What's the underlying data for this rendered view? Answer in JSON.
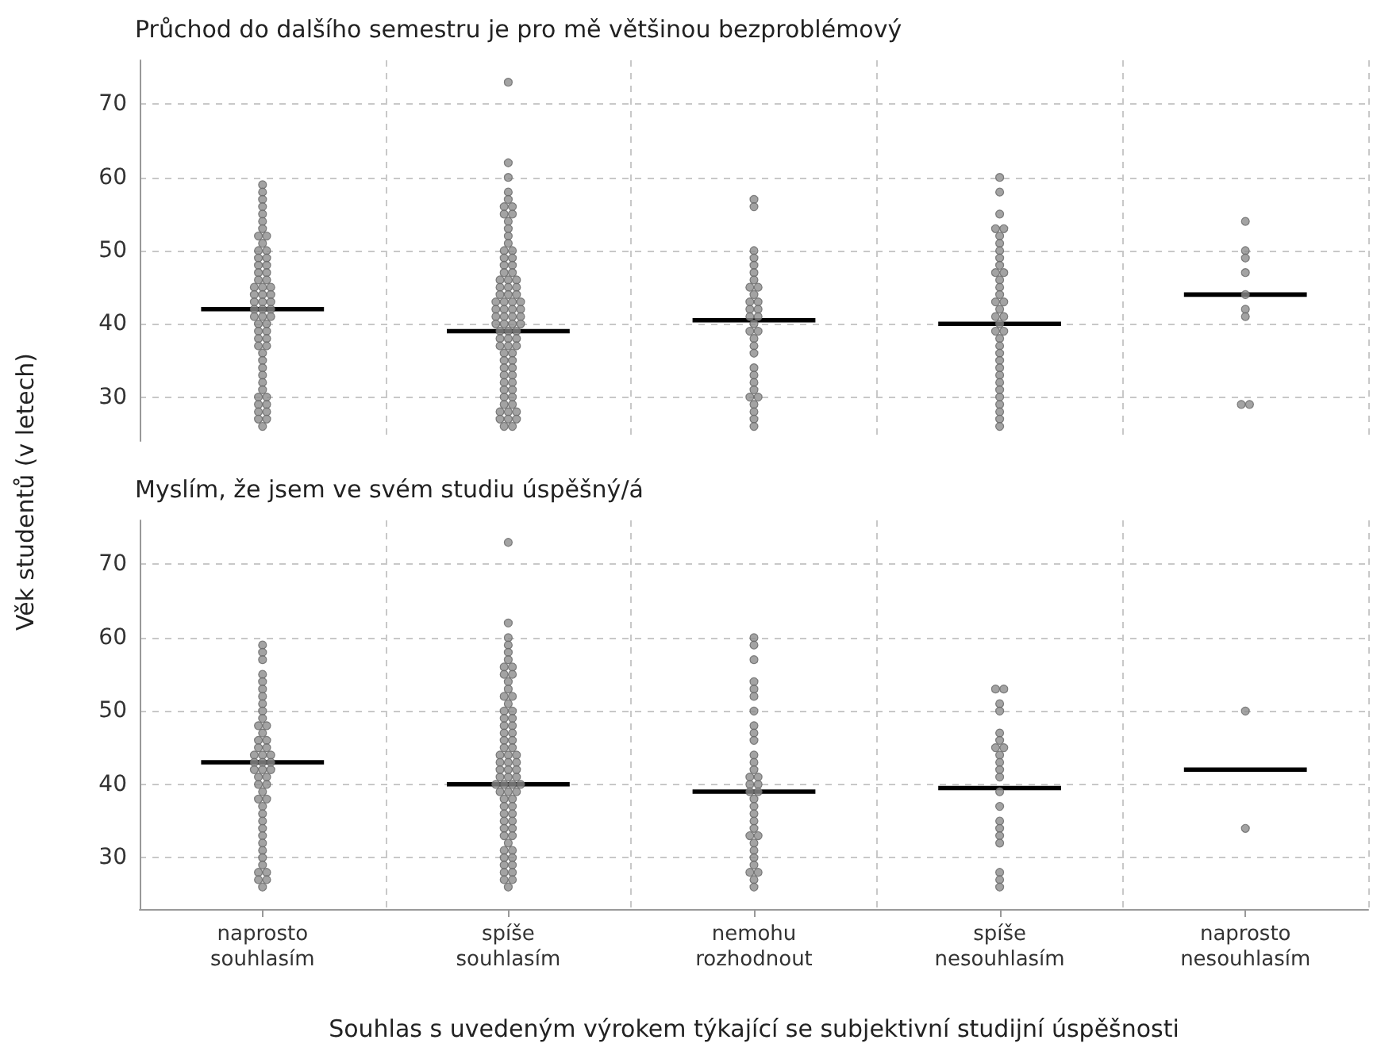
{
  "chart_data": [
    {
      "type": "scatter",
      "title": "Průchod do dalšího semestru je pro mě většinou bezproblémový",
      "ylabel": "Věk studentů (v letech)",
      "categories": [
        "naprosto souhlasím",
        "spíše souhlasím",
        "nemohu rozhodnout",
        "spíše nesouhlasím",
        "naprosto nesouhlasím"
      ],
      "ylim": [
        24,
        76
      ],
      "yticks": [
        30,
        40,
        50,
        60,
        70
      ],
      "grid": true,
      "tick_labels": "y",
      "marker": "circle",
      "series": [
        {
          "type": "scatter",
          "color": "#8c8c8c",
          "x": [
            "naprosto souhlasím",
            "naprosto souhlasím",
            "naprosto souhlasím",
            "naprosto souhlasím",
            "naprosto souhlasím",
            "naprosto souhlasím",
            "naprosto souhlasím",
            "naprosto souhlasím",
            "naprosto souhlasím",
            "naprosto souhlasím",
            "naprosto souhlasím",
            "naprosto souhlasím",
            "naprosto souhlasím",
            "naprosto souhlasím",
            "naprosto souhlasím",
            "naprosto souhlasím",
            "naprosto souhlasím",
            "naprosto souhlasím",
            "naprosto souhlasím",
            "naprosto souhlasím",
            "naprosto souhlasím",
            "naprosto souhlasím",
            "naprosto souhlasím",
            "naprosto souhlasím",
            "naprosto souhlasím",
            "naprosto souhlasím",
            "naprosto souhlasím",
            "naprosto souhlasím",
            "naprosto souhlasím",
            "naprosto souhlasím",
            "naprosto souhlasím",
            "naprosto souhlasím",
            "naprosto souhlasím",
            "naprosto souhlasím",
            "naprosto souhlasím",
            "naprosto souhlasím",
            "naprosto souhlasím",
            "naprosto souhlasím",
            "naprosto souhlasím",
            "naprosto souhlasím",
            "naprosto souhlasím",
            "naprosto souhlasím",
            "naprosto souhlasím",
            "naprosto souhlasím",
            "naprosto souhlasím",
            "naprosto souhlasím",
            "naprosto souhlasím",
            "naprosto souhlasím",
            "naprosto souhlasím",
            "naprosto souhlasím",
            "naprosto souhlasím",
            "naprosto souhlasím",
            "naprosto souhlasím",
            "naprosto souhlasím",
            "naprosto souhlasím",
            "naprosto souhlasím",
            "naprosto souhlasím",
            "naprosto souhlasím"
          ],
          "values": [
            59,
            58,
            57,
            56,
            55,
            54,
            53,
            52,
            52,
            51,
            50,
            50,
            49,
            49,
            48,
            48,
            47,
            47,
            46,
            46,
            45,
            45,
            45,
            44,
            44,
            44,
            43,
            43,
            43,
            42,
            42,
            42,
            41,
            41,
            41,
            40,
            40,
            39,
            39,
            38,
            38,
            37,
            37,
            36,
            35,
            34,
            33,
            32,
            31,
            30,
            30,
            29,
            29,
            28,
            28,
            27,
            27,
            26
          ]
        },
        {
          "type": "scatter",
          "color": "#8c8c8c",
          "x": [
            "spíše souhlasím",
            "spíše souhlasím",
            "spíše souhlasím",
            "spíše souhlasím",
            "spíše souhlasím",
            "spíše souhlasím",
            "spíše souhlasím",
            "spíše souhlasím",
            "spíše souhlasím",
            "spíše souhlasím",
            "spíše souhlasím",
            "spíše souhlasím",
            "spíše souhlasím",
            "spíše souhlasím",
            "spíše souhlasím",
            "spíše souhlasím",
            "spíše souhlasím",
            "spíše souhlasím",
            "spíše souhlasím",
            "spíše souhlasím",
            "spíše souhlasím",
            "spíše souhlasím",
            "spíše souhlasím",
            "spíše souhlasím",
            "spíše souhlasím",
            "spíše souhlasím",
            "spíše souhlasím",
            "spíše souhlasím",
            "spíše souhlasím",
            "spíše souhlasím",
            "spíše souhlasím",
            "spíše souhlasím",
            "spíše souhlasím",
            "spíše souhlasím",
            "spíše souhlasím",
            "spíše souhlasím",
            "spíše souhlasím",
            "spíše souhlasím",
            "spíše souhlasím",
            "spíše souhlasím",
            "spíše souhlasím",
            "spíše souhlasím",
            "spíše souhlasím",
            "spíše souhlasím",
            "spíše souhlasím",
            "spíše souhlasím",
            "spíše souhlasím",
            "spíše souhlasím",
            "spíše souhlasím",
            "spíše souhlasím",
            "spíše souhlasím",
            "spíše souhlasím",
            "spíše souhlasím",
            "spíše souhlasím",
            "spíše souhlasím",
            "spíše souhlasím",
            "spíše souhlasím",
            "spíše souhlasím",
            "spíše souhlasím",
            "spíše souhlasím",
            "spíše souhlasím",
            "spíše souhlasím",
            "spíše souhlasím",
            "spíše souhlasím",
            "spíše souhlasím",
            "spíše souhlasím",
            "spíše souhlasím",
            "spíše souhlasím",
            "spíše souhlasím",
            "spíše souhlasím",
            "spíše souhlasím",
            "spíše souhlasím",
            "spíše souhlasím",
            "spíše souhlasím",
            "spíše souhlasím",
            "spíše souhlasím",
            "spíše souhlasím",
            "spíše souhlasím",
            "spíše souhlasím"
          ],
          "values": [
            73,
            62,
            60,
            58,
            57,
            56,
            56,
            55,
            55,
            54,
            53,
            52,
            51,
            50,
            50,
            49,
            49,
            48,
            48,
            47,
            47,
            46,
            46,
            46,
            45,
            45,
            45,
            44,
            44,
            44,
            43,
            43,
            43,
            43,
            42,
            42,
            42,
            42,
            41,
            41,
            41,
            41,
            40,
            40,
            40,
            40,
            39,
            39,
            39,
            38,
            38,
            38,
            37,
            37,
            37,
            36,
            36,
            35,
            35,
            34,
            34,
            33,
            33,
            32,
            32,
            31,
            31,
            30,
            30,
            29,
            29,
            28,
            28,
            28,
            27,
            27,
            27,
            26,
            26
          ]
        },
        {
          "type": "scatter",
          "color": "#8c8c8c",
          "x": [
            "nemohu rozhodnout",
            "nemohu rozhodnout",
            "nemohu rozhodnout",
            "nemohu rozhodnout",
            "nemohu rozhodnout",
            "nemohu rozhodnout",
            "nemohu rozhodnout",
            "nemohu rozhodnout",
            "nemohu rozhodnout",
            "nemohu rozhodnout",
            "nemohu rozhodnout",
            "nemohu rozhodnout",
            "nemohu rozhodnout",
            "nemohu rozhodnout",
            "nemohu rozhodnout",
            "nemohu rozhodnout",
            "nemohu rozhodnout",
            "nemohu rozhodnout",
            "nemohu rozhodnout",
            "nemohu rozhodnout",
            "nemohu rozhodnout",
            "nemohu rozhodnout",
            "nemohu rozhodnout",
            "nemohu rozhodnout",
            "nemohu rozhodnout",
            "nemohu rozhodnout",
            "nemohu rozhodnout",
            "nemohu rozhodnout",
            "nemohu rozhodnout",
            "nemohu rozhodnout",
            "nemohu rozhodnout",
            "nemohu rozhodnout"
          ],
          "values": [
            57,
            56,
            50,
            49,
            48,
            47,
            46,
            45,
            45,
            44,
            43,
            43,
            42,
            42,
            41,
            41,
            40,
            39,
            39,
            38,
            37,
            36,
            34,
            33,
            32,
            31,
            30,
            30,
            29,
            28,
            27,
            26
          ]
        },
        {
          "type": "scatter",
          "color": "#8c8c8c",
          "x": [
            "spíše nesouhlasím",
            "spíše nesouhlasím",
            "spíše nesouhlasím",
            "spíše nesouhlasím",
            "spíše nesouhlasím",
            "spíše nesouhlasím",
            "spíše nesouhlasím",
            "spíše nesouhlasím",
            "spíše nesouhlasím",
            "spíše nesouhlasím",
            "spíše nesouhlasím",
            "spíše nesouhlasím",
            "spíše nesouhlasím",
            "spíše nesouhlasím",
            "spíše nesouhlasím",
            "spíše nesouhlasím",
            "spíše nesouhlasím",
            "spíše nesouhlasím",
            "spíše nesouhlasím",
            "spíše nesouhlasím",
            "spíše nesouhlasím",
            "spíše nesouhlasím",
            "spíše nesouhlasím",
            "spíše nesouhlasím",
            "spíše nesouhlasím",
            "spíše nesouhlasím",
            "spíše nesouhlasím",
            "spíše nesouhlasím",
            "spíše nesouhlasím",
            "spíše nesouhlasím",
            "spíše nesouhlasím",
            "spíše nesouhlasím",
            "spíše nesouhlasím",
            "spíše nesouhlasím",
            "spíše nesouhlasím",
            "spíše nesouhlasím"
          ],
          "values": [
            60,
            58,
            55,
            53,
            53,
            52,
            51,
            50,
            49,
            48,
            47,
            47,
            46,
            45,
            44,
            43,
            43,
            42,
            41,
            41,
            40,
            39,
            39,
            38,
            37,
            36,
            35,
            34,
            33,
            32,
            31,
            30,
            29,
            28,
            27,
            26
          ]
        },
        {
          "type": "scatter",
          "color": "#8c8c8c",
          "x": [
            "naprosto nesouhlasím",
            "naprosto nesouhlasím",
            "naprosto nesouhlasím",
            "naprosto nesouhlasím",
            "naprosto nesouhlasím",
            "naprosto nesouhlasím",
            "naprosto nesouhlasím",
            "naprosto nesouhlasím",
            "naprosto nesouhlasím"
          ],
          "values": [
            54,
            50,
            49,
            47,
            44,
            42,
            41,
            29,
            29
          ]
        },
        {
          "type": "bar",
          "color": "#000000",
          "base": [
            41.7,
            38.7,
            40.2,
            39.7,
            43.7
          ],
          "values": [
            0.6,
            0.6,
            0.6,
            0.6,
            0.6
          ]
        }
      ]
    },
    {
      "type": "scatter",
      "title": "Myslím, že jsem ve svém studiu úspěšný/á",
      "xlabel": "Souhlas s uvedeným výrokem týkající se subjektivní studijní úspěšnosti",
      "categories": [
        "naprosto souhlasím",
        "spíše souhlasím",
        "nemohu rozhodnout",
        "spíše nesouhlasím",
        "naprosto nesouhlasím"
      ],
      "ylim": [
        23,
        76
      ],
      "yticks": [
        30,
        40,
        50,
        60,
        70
      ],
      "grid": true,
      "marker": "circle",
      "series": [
        {
          "type": "scatter",
          "color": "#8c8c8c",
          "x": [
            "naprosto souhlasím",
            "naprosto souhlasím",
            "naprosto souhlasím",
            "naprosto souhlasím",
            "naprosto souhlasím",
            "naprosto souhlasím",
            "naprosto souhlasím",
            "naprosto souhlasím",
            "naprosto souhlasím",
            "naprosto souhlasím",
            "naprosto souhlasím",
            "naprosto souhlasím",
            "naprosto souhlasím",
            "naprosto souhlasím",
            "naprosto souhlasím",
            "naprosto souhlasím",
            "naprosto souhlasím",
            "naprosto souhlasím",
            "naprosto souhlasím",
            "naprosto souhlasím",
            "naprosto souhlasím",
            "naprosto souhlasím",
            "naprosto souhlasím",
            "naprosto souhlasím",
            "naprosto souhlasím",
            "naprosto souhlasím",
            "naprosto souhlasím",
            "naprosto souhlasím",
            "naprosto souhlasím",
            "naprosto souhlasím",
            "naprosto souhlasím",
            "naprosto souhlasím",
            "naprosto souhlasím",
            "naprosto souhlasím",
            "naprosto souhlasím",
            "naprosto souhlasím",
            "naprosto souhlasím",
            "naprosto souhlasím",
            "naprosto souhlasím",
            "naprosto souhlasím",
            "naprosto souhlasím",
            "naprosto souhlasím",
            "naprosto souhlasím",
            "naprosto souhlasím",
            "naprosto souhlasím",
            "naprosto souhlasím",
            "naprosto souhlasím"
          ],
          "values": [
            59,
            58,
            57,
            55,
            54,
            53,
            52,
            51,
            50,
            49,
            48,
            48,
            47,
            46,
            46,
            45,
            45,
            44,
            44,
            44,
            43,
            43,
            43,
            42,
            42,
            42,
            41,
            41,
            40,
            40,
            39,
            38,
            38,
            37,
            36,
            35,
            34,
            33,
            32,
            31,
            30,
            29,
            28,
            28,
            27,
            27,
            26
          ]
        },
        {
          "type": "scatter",
          "color": "#8c8c8c",
          "x": [
            "spíše souhlasím",
            "spíše souhlasím",
            "spíše souhlasím",
            "spíše souhlasím",
            "spíše souhlasím",
            "spíše souhlasím",
            "spíše souhlasím",
            "spíše souhlasím",
            "spíše souhlasím",
            "spíše souhlasím",
            "spíše souhlasím",
            "spíše souhlasím",
            "spíše souhlasím",
            "spíše souhlasím",
            "spíše souhlasím",
            "spíše souhlasím",
            "spíše souhlasím",
            "spíše souhlasím",
            "spíše souhlasím",
            "spíše souhlasím",
            "spíše souhlasím",
            "spíše souhlasím",
            "spíše souhlasím",
            "spíše souhlasím",
            "spíše souhlasím",
            "spíše souhlasím",
            "spíše souhlasím",
            "spíše souhlasím",
            "spíše souhlasím",
            "spíše souhlasím",
            "spíše souhlasím",
            "spíše souhlasím",
            "spíše souhlasím",
            "spíše souhlasím",
            "spíše souhlasím",
            "spíše souhlasím",
            "spíše souhlasím",
            "spíše souhlasím",
            "spíše souhlasím",
            "spíše souhlasím",
            "spíše souhlasím",
            "spíše souhlasím",
            "spíše souhlasím",
            "spíše souhlasím",
            "spíše souhlasím",
            "spíše souhlasím",
            "spíše souhlasím",
            "spíše souhlasím",
            "spíše souhlasím",
            "spíše souhlasím",
            "spíše souhlasím",
            "spíše souhlasím",
            "spíše souhlasím",
            "spíše souhlasím",
            "spíše souhlasím",
            "spíše souhlasím",
            "spíše souhlasím",
            "spíše souhlasím",
            "spíše souhlasím",
            "spíše souhlasím",
            "spíše souhlasím",
            "spíše souhlasím",
            "spíše souhlasím",
            "spíše souhlasím",
            "spíše souhlasím",
            "spíše souhlasím",
            "spíše souhlasím",
            "spíše souhlasím",
            "spíše souhlasím",
            "spíše souhlasím"
          ],
          "values": [
            73,
            62,
            60,
            59,
            58,
            57,
            56,
            56,
            55,
            55,
            54,
            53,
            52,
            52,
            51,
            50,
            50,
            49,
            49,
            48,
            48,
            47,
            47,
            46,
            46,
            45,
            45,
            44,
            44,
            44,
            43,
            43,
            43,
            42,
            42,
            42,
            41,
            41,
            41,
            40,
            40,
            40,
            40,
            39,
            39,
            39,
            38,
            38,
            37,
            37,
            36,
            36,
            35,
            35,
            34,
            34,
            33,
            33,
            32,
            31,
            31,
            30,
            30,
            29,
            29,
            28,
            28,
            27,
            27,
            26
          ]
        },
        {
          "type": "scatter",
          "color": "#8c8c8c",
          "x": [
            "nemohu rozhodnout",
            "nemohu rozhodnout",
            "nemohu rozhodnout",
            "nemohu rozhodnout",
            "nemohu rozhodnout",
            "nemohu rozhodnout",
            "nemohu rozhodnout",
            "nemohu rozhodnout",
            "nemohu rozhodnout",
            "nemohu rozhodnout",
            "nemohu rozhodnout",
            "nemohu rozhodnout",
            "nemohu rozhodnout",
            "nemohu rozhodnout",
            "nemohu rozhodnout",
            "nemohu rozhodnout",
            "nemohu rozhodnout",
            "nemohu rozhodnout",
            "nemohu rozhodnout",
            "nemohu rozhodnout",
            "nemohu rozhodnout",
            "nemohu rozhodnout",
            "nemohu rozhodnout",
            "nemohu rozhodnout",
            "nemohu rozhodnout",
            "nemohu rozhodnout",
            "nemohu rozhodnout",
            "nemohu rozhodnout",
            "nemohu rozhodnout",
            "nemohu rozhodnout",
            "nemohu rozhodnout",
            "nemohu rozhodnout",
            "nemohu rozhodnout",
            "nemohu rozhodnout"
          ],
          "values": [
            60,
            59,
            57,
            54,
            53,
            52,
            50,
            48,
            47,
            46,
            44,
            43,
            42,
            41,
            41,
            40,
            40,
            39,
            39,
            38,
            37,
            36,
            35,
            34,
            33,
            33,
            32,
            31,
            30,
            29,
            28,
            28,
            27,
            26
          ]
        },
        {
          "type": "scatter",
          "color": "#8c8c8c",
          "x": [
            "spíše nesouhlasím",
            "spíše nesouhlasím",
            "spíše nesouhlasím",
            "spíše nesouhlasím",
            "spíše nesouhlasím",
            "spíše nesouhlasím",
            "spíše nesouhlasím",
            "spíše nesouhlasím",
            "spíše nesouhlasím",
            "spíše nesouhlasím",
            "spíše nesouhlasím",
            "spíše nesouhlasím",
            "spíše nesouhlasím",
            "spíše nesouhlasím",
            "spíše nesouhlasím",
            "spíše nesouhlasím",
            "spíše nesouhlasím",
            "spíše nesouhlasím",
            "spíše nesouhlasím",
            "spíše nesouhlasím",
            "spíše nesouhlasím"
          ],
          "values": [
            53,
            53,
            51,
            50,
            47,
            46,
            45,
            45,
            44,
            43,
            42,
            41,
            39,
            37,
            35,
            34,
            33,
            32,
            28,
            27,
            26
          ]
        },
        {
          "type": "scatter",
          "color": "#8c8c8c",
          "x": [
            "naprosto nesouhlasím",
            "naprosto nesouhlasím"
          ],
          "values": [
            50,
            34
          ]
        },
        {
          "type": "bar",
          "color": "#000000",
          "base": [
            42.7,
            39.7,
            38.7,
            39.2,
            41.7
          ],
          "values": [
            0.6,
            0.6,
            0.6,
            0.6,
            0.6
          ]
        }
      ]
    }
  ]
}
